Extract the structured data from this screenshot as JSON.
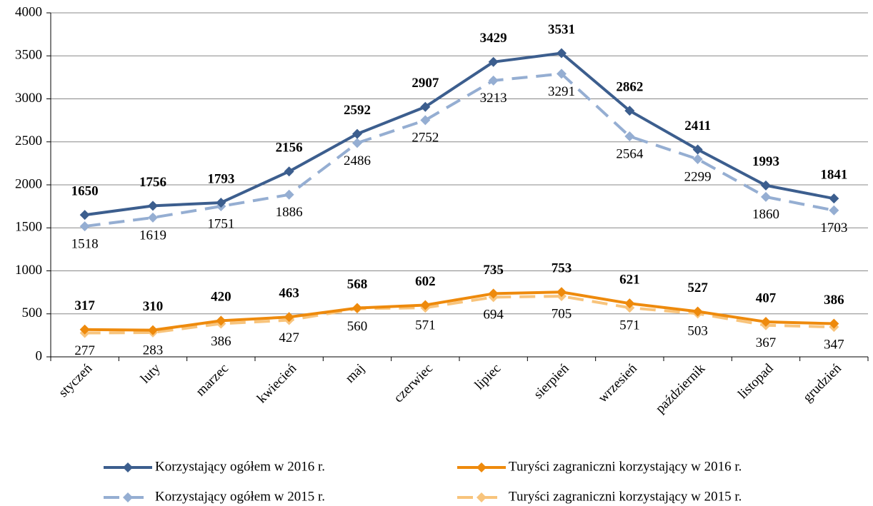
{
  "chart_data": {
    "type": "line",
    "categories": [
      "styczeń",
      "luty",
      "marzec",
      "kwiecień",
      "maj",
      "czerwiec",
      "lipiec",
      "sierpień",
      "wrzesień",
      "październik",
      "listopad",
      "grudzień"
    ],
    "series": [
      {
        "name": "Korzystający ogółem w 2016 r.",
        "color": "#3c5e8e",
        "dashed": false,
        "values": [
          1650,
          1756,
          1793,
          2156,
          2592,
          2907,
          3429,
          3531,
          2862,
          2411,
          1993,
          1841
        ]
      },
      {
        "name": "Turyści zagraniczni korzystający w 2016 r.",
        "color": "#ee8a0c",
        "dashed": false,
        "values": [
          317,
          310,
          420,
          463,
          568,
          602,
          735,
          753,
          621,
          527,
          407,
          386
        ]
      },
      {
        "name": "Korzystający ogółem w 2015 r.",
        "color": "#95aed2",
        "dashed": true,
        "values": [
          1518,
          1619,
          1751,
          1886,
          2486,
          2752,
          3213,
          3291,
          2564,
          2299,
          1860,
          1703
        ]
      },
      {
        "name": "Turyści zagraniczni korzystający w 2015 r.",
        "color": "#f8c47c",
        "dashed": true,
        "values": [
          277,
          283,
          386,
          427,
          560,
          571,
          694,
          705,
          571,
          503,
          367,
          347
        ]
      }
    ],
    "ylim": [
      0,
      4000
    ],
    "yticks": [
      0,
      500,
      1000,
      1500,
      2000,
      2500,
      3000,
      3500,
      4000
    ],
    "grid": true
  }
}
